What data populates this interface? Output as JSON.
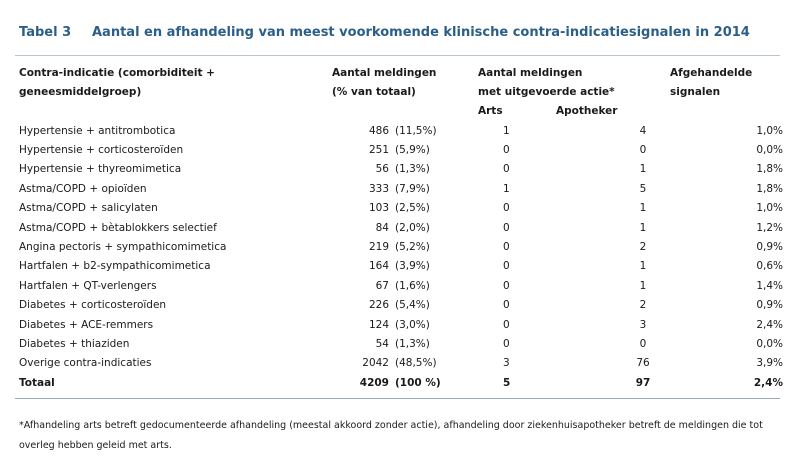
{
  "title": {
    "number": "Tabel 3",
    "text": "Aantal en afhandeling van meest voorkomende klinische contra-indicatiesignalen in 2014"
  },
  "headers": {
    "col1_line1": "Contra-indicatie (comorbiditeit +",
    "col1_line2": "geneesmiddelgroep)",
    "col2_line1": "Aantal meldingen",
    "col2_line2": "(% van totaal)",
    "col3_line1": "Aantal meldingen",
    "col3_line2": "met uitgevoerde actie*",
    "sub_arts": "Arts",
    "sub_apotheker": "Apotheker",
    "col4_line1": "Afgehandelde",
    "col4_line2": "signalen"
  },
  "rows": [
    {
      "label": "Hypertensie + antitrombotica",
      "n": "486",
      "pct": "(11,5%)",
      "arts": "1",
      "apotheker": "4",
      "afgehandeld": "1,0%"
    },
    {
      "label": "Hypertensie + corticosteroïden",
      "n": "251",
      "pct": "(5,9%)",
      "arts": "0",
      "apotheker": "0",
      "afgehandeld": "0,0%"
    },
    {
      "label": "Hypertensie + thyreomimetica",
      "n": "56",
      "pct": "(1,3%)",
      "arts": "0",
      "apotheker": "1",
      "afgehandeld": "1,8%"
    },
    {
      "label": "Astma/COPD + opioïden",
      "n": "333",
      "pct": "(7,9%)",
      "arts": "1",
      "apotheker": "5",
      "afgehandeld": "1,8%"
    },
    {
      "label": "Astma/COPD + salicylaten",
      "n": "103",
      "pct": "(2,5%)",
      "arts": "0",
      "apotheker": "1",
      "afgehandeld": "1,0%"
    },
    {
      "label": "Astma/COPD + bètablokkers selectief",
      "n": "84",
      "pct": "(2,0%)",
      "arts": "0",
      "apotheker": "1",
      "afgehandeld": "1,2%"
    },
    {
      "label": "Angina pectoris + sympathicomimetica",
      "n": "219",
      "pct": "(5,2%)",
      "arts": "0",
      "apotheker": "2",
      "afgehandeld": "0,9%"
    },
    {
      "label": "Hartfalen + b2-sympathicomimetica",
      "n": "164",
      "pct": "(3,9%)",
      "arts": "0",
      "apotheker": "1",
      "afgehandeld": "0,6%"
    },
    {
      "label": "Hartfalen + QT-verlengers",
      "n": "67",
      "pct": "(1,6%)",
      "arts": "0",
      "apotheker": "1",
      "afgehandeld": "1,4%"
    },
    {
      "label": "Diabetes + corticosteroïden",
      "n": "226",
      "pct": "(5,4%)",
      "arts": "0",
      "apotheker": "2",
      "afgehandeld": "0,9%"
    },
    {
      "label": "Diabetes + ACE-remmers",
      "n": "124",
      "pct": "(3,0%)",
      "arts": "0",
      "apotheker": "3",
      "afgehandeld": "2,4%"
    },
    {
      "label": "Diabetes + thiaziden",
      "n": "54",
      "pct": "(1,3%)",
      "arts": "0",
      "apotheker": "0",
      "afgehandeld": "0,0%"
    },
    {
      "label": "Overige contra-indicaties",
      "n": "2042",
      "pct": "(48,5%)",
      "arts": "3",
      "apotheker": "76",
      "afgehandeld": "3,9%"
    }
  ],
  "total": {
    "label": "Totaal",
    "n": "4209",
    "pct": "(100 %)",
    "arts": "5",
    "apotheker": "97",
    "afgehandeld": "2,4%"
  },
  "footnote": "*Afhandeling arts betreft gedocumenteerde afhandeling (meestal akkoord zonder actie), afhandeling door ziekenhuisapotheker betreft de meldingen die tot overleg hebben geleid met arts."
}
